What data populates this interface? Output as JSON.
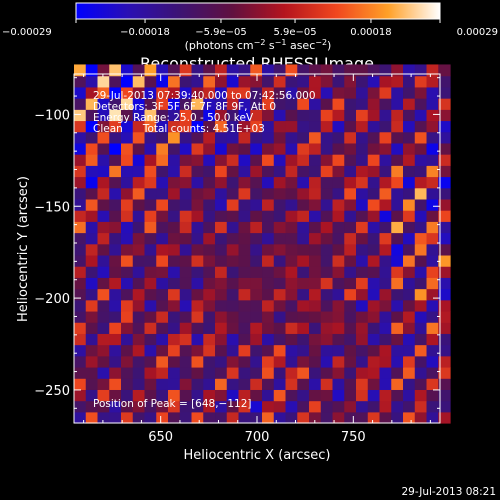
{
  "chart_data": {
    "type": "heatmap",
    "title": "Reconstructed RHESSI Image",
    "xlabel": "Heliocentric X (arcsec)",
    "ylabel": "Heliocentric Y (arcsec)",
    "xlim": [
      605,
      795
    ],
    "ylim": [
      -268,
      -78
    ],
    "x_ticks": [
      650,
      700,
      750
    ],
    "y_ticks": [
      -100,
      -150,
      -200,
      -250
    ],
    "x_tick_labels": [
      "650",
      "700",
      "750"
    ],
    "y_tick_labels": [
      "−100",
      "−150",
      "−200",
      "−250"
    ],
    "colorbar": {
      "range": [
        -0.00029,
        0.00029
      ],
      "ticks": [
        -0.00029,
        -0.00018,
        -5.9e-05,
        5.9e-05,
        0.00018,
        0.00029
      ],
      "tick_labels": [
        "−0.00029",
        "−0.00018",
        "−5.9e−05",
        "5.9e−05",
        "0.00018",
        "0.00029"
      ],
      "unit_prefix": "(photons cm",
      "unit_sup1": "−2",
      "unit_mid": " s",
      "unit_sup2": "−1",
      "unit_mid2": " asec",
      "unit_sup3": "−2",
      "unit_suffix": ")",
      "colors": [
        "#0000ff",
        "#2a0fb4",
        "#3d1373",
        "#601040",
        "#b4141e",
        "#f0461e",
        "#ffa028",
        "#ffffff"
      ]
    },
    "annotations": [
      "29-Jul-2013 07:39:40.000 to 07:42:56.000",
      "Detectors: 3F 5F 6F 7F 8F 9F, Att 0",
      "Energy Range: 25.0 - 50.0 keV",
      "Clean      Total counts: 4.51E+03"
    ],
    "peak_label": "Position of Peak = [648,−112]",
    "peak_position": [
      648,
      -112
    ],
    "pattern": {
      "stripe_spacing_arcsec": 15.5,
      "stripe_direction": "diagonal, lower-left to upper-right",
      "bright_region": "upper-left and right edge",
      "dim_region": "center and lower-center",
      "noise_seed": 7
    }
  },
  "footer": {
    "timestamp": "29-Jul-2013 08:21"
  }
}
